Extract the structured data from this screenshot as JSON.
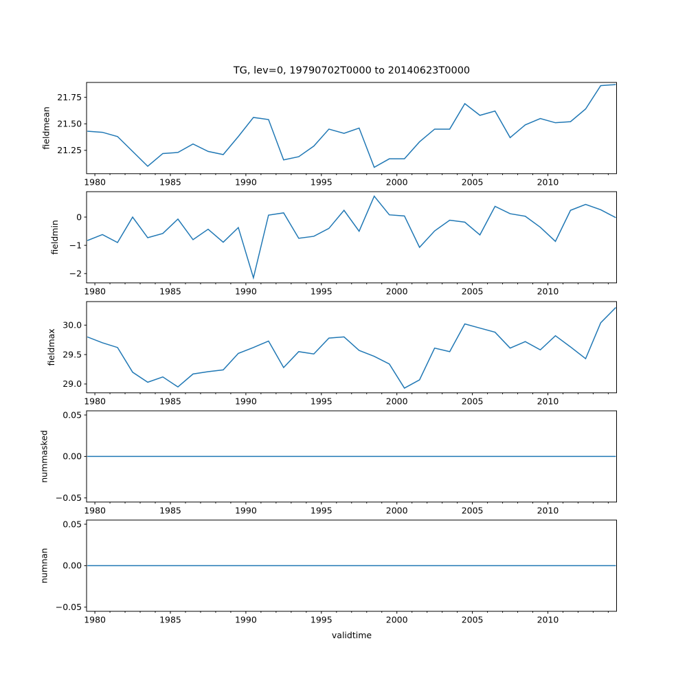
{
  "title": "TG, lev=0, 19790702T0000 to 20140623T0000",
  "line_color": "#1f77b4",
  "xaxis": {
    "label": "validtime",
    "xlim": [
      1979.45,
      2014.55
    ],
    "major_ticks": [
      1980,
      1985,
      1990,
      1995,
      2000,
      2005,
      2010
    ],
    "major_labels": [
      "1980",
      "1985",
      "1990",
      "1995",
      "2000",
      "2005",
      "2010"
    ],
    "minor_ticks": [
      1981,
      1982,
      1983,
      1984,
      1986,
      1987,
      1988,
      1989,
      1991,
      1992,
      1993,
      1994,
      1996,
      1997,
      1998,
      1999,
      2001,
      2002,
      2003,
      2004,
      2006,
      2007,
      2008,
      2009,
      2011,
      2012,
      2013,
      2014
    ]
  },
  "chart_data": [
    {
      "type": "line",
      "name": "fieldmean",
      "ylabel": "fieldmean",
      "ylim": [
        21.03,
        21.89
      ],
      "yticks": [
        21.25,
        21.5,
        21.75
      ],
      "ytick_labels": [
        "21.25",
        "21.50",
        "21.75"
      ],
      "x": [
        1979.5,
        1980.5,
        1981.5,
        1982.5,
        1983.5,
        1984.5,
        1985.5,
        1986.5,
        1987.5,
        1988.5,
        1989.5,
        1990.5,
        1991.5,
        1992.5,
        1993.5,
        1994.5,
        1995.5,
        1996.5,
        1997.5,
        1998.5,
        1999.5,
        2000.5,
        2001.5,
        2002.5,
        2003.5,
        2004.5,
        2005.5,
        2006.5,
        2007.5,
        2008.5,
        2009.5,
        2010.5,
        2011.5,
        2012.5,
        2013.5,
        2014.5
      ],
      "values": [
        21.43,
        21.42,
        21.38,
        21.24,
        21.1,
        21.22,
        21.23,
        21.31,
        21.24,
        21.21,
        21.38,
        21.56,
        21.54,
        21.16,
        21.19,
        21.29,
        21.45,
        21.41,
        21.46,
        21.09,
        21.17,
        21.17,
        21.33,
        21.45,
        21.45,
        21.69,
        21.58,
        21.62,
        21.37,
        21.49,
        21.55,
        21.51,
        21.52,
        21.64,
        21.86,
        21.87
      ]
    },
    {
      "type": "line",
      "name": "fieldmin",
      "ylabel": "fieldmin",
      "ylim": [
        -2.33,
        0.9
      ],
      "yticks": [
        -2,
        -1,
        0
      ],
      "ytick_labels": [
        "−2",
        "−1",
        "0"
      ],
      "x": [
        1979.5,
        1980.5,
        1981.5,
        1982.5,
        1983.5,
        1984.5,
        1985.5,
        1986.5,
        1987.5,
        1988.5,
        1989.5,
        1990.5,
        1991.5,
        1992.5,
        1993.5,
        1994.5,
        1995.5,
        1996.5,
        1997.5,
        1998.5,
        1999.5,
        2000.5,
        2001.5,
        2002.5,
        2003.5,
        2004.5,
        2005.5,
        2006.5,
        2007.5,
        2008.5,
        2009.5,
        2010.5,
        2011.5,
        2012.5,
        2013.5,
        2014.5
      ],
      "values": [
        -0.83,
        -0.62,
        -0.9,
        0.0,
        -0.73,
        -0.58,
        -0.07,
        -0.8,
        -0.43,
        -0.89,
        -0.37,
        -2.15,
        0.07,
        0.15,
        -0.75,
        -0.68,
        -0.4,
        0.24,
        -0.5,
        0.74,
        0.08,
        0.04,
        -1.07,
        -0.49,
        -0.11,
        -0.18,
        -0.63,
        0.38,
        0.12,
        0.03,
        -0.36,
        -0.86,
        0.24,
        0.45,
        0.26,
        -0.02
      ]
    },
    {
      "type": "line",
      "name": "fieldmax",
      "ylabel": "fieldmax",
      "ylim": [
        28.85,
        30.4
      ],
      "yticks": [
        29.0,
        29.5,
        30.0
      ],
      "ytick_labels": [
        "29.0",
        "29.5",
        "30.0"
      ],
      "x": [
        1979.5,
        1980.5,
        1981.5,
        1982.5,
        1983.5,
        1984.5,
        1985.5,
        1986.5,
        1987.5,
        1988.5,
        1989.5,
        1990.5,
        1991.5,
        1992.5,
        1993.5,
        1994.5,
        1995.5,
        1996.5,
        1997.5,
        1998.5,
        1999.5,
        2000.5,
        2001.5,
        2002.5,
        2003.5,
        2004.5,
        2005.5,
        2006.5,
        2007.5,
        2008.5,
        2009.5,
        2010.5,
        2011.5,
        2012.5,
        2013.5,
        2014.5
      ],
      "values": [
        29.8,
        29.7,
        29.62,
        29.2,
        29.03,
        29.12,
        28.95,
        29.17,
        29.21,
        29.24,
        29.52,
        29.62,
        29.73,
        29.28,
        29.55,
        29.51,
        29.78,
        29.8,
        29.57,
        29.47,
        29.34,
        28.93,
        29.07,
        29.61,
        29.55,
        30.02,
        29.95,
        29.88,
        29.61,
        29.72,
        29.58,
        29.82,
        29.63,
        29.43,
        30.04,
        30.3
      ]
    },
    {
      "type": "line",
      "name": "nummasked",
      "ylabel": "nummasked",
      "ylim": [
        -0.055,
        0.055
      ],
      "yticks": [
        -0.05,
        0.0,
        0.05
      ],
      "ytick_labels": [
        "−0.05",
        "0.00",
        "0.05"
      ],
      "x": [
        1979.5,
        1980.5,
        1981.5,
        1982.5,
        1983.5,
        1984.5,
        1985.5,
        1986.5,
        1987.5,
        1988.5,
        1989.5,
        1990.5,
        1991.5,
        1992.5,
        1993.5,
        1994.5,
        1995.5,
        1996.5,
        1997.5,
        1998.5,
        1999.5,
        2000.5,
        2001.5,
        2002.5,
        2003.5,
        2004.5,
        2005.5,
        2006.5,
        2007.5,
        2008.5,
        2009.5,
        2010.5,
        2011.5,
        2012.5,
        2013.5,
        2014.5
      ],
      "values": [
        0,
        0,
        0,
        0,
        0,
        0,
        0,
        0,
        0,
        0,
        0,
        0,
        0,
        0,
        0,
        0,
        0,
        0,
        0,
        0,
        0,
        0,
        0,
        0,
        0,
        0,
        0,
        0,
        0,
        0,
        0,
        0,
        0,
        0,
        0,
        0
      ]
    },
    {
      "type": "line",
      "name": "numnan",
      "ylabel": "numnan",
      "ylim": [
        -0.055,
        0.055
      ],
      "yticks": [
        -0.05,
        0.0,
        0.05
      ],
      "ytick_labels": [
        "−0.05",
        "0.00",
        "0.05"
      ],
      "x": [
        1979.5,
        1980.5,
        1981.5,
        1982.5,
        1983.5,
        1984.5,
        1985.5,
        1986.5,
        1987.5,
        1988.5,
        1989.5,
        1990.5,
        1991.5,
        1992.5,
        1993.5,
        1994.5,
        1995.5,
        1996.5,
        1997.5,
        1998.5,
        1999.5,
        2000.5,
        2001.5,
        2002.5,
        2003.5,
        2004.5,
        2005.5,
        2006.5,
        2007.5,
        2008.5,
        2009.5,
        2010.5,
        2011.5,
        2012.5,
        2013.5,
        2014.5
      ],
      "values": [
        0,
        0,
        0,
        0,
        0,
        0,
        0,
        0,
        0,
        0,
        0,
        0,
        0,
        0,
        0,
        0,
        0,
        0,
        0,
        0,
        0,
        0,
        0,
        0,
        0,
        0,
        0,
        0,
        0,
        0,
        0,
        0,
        0,
        0,
        0,
        0
      ]
    }
  ]
}
